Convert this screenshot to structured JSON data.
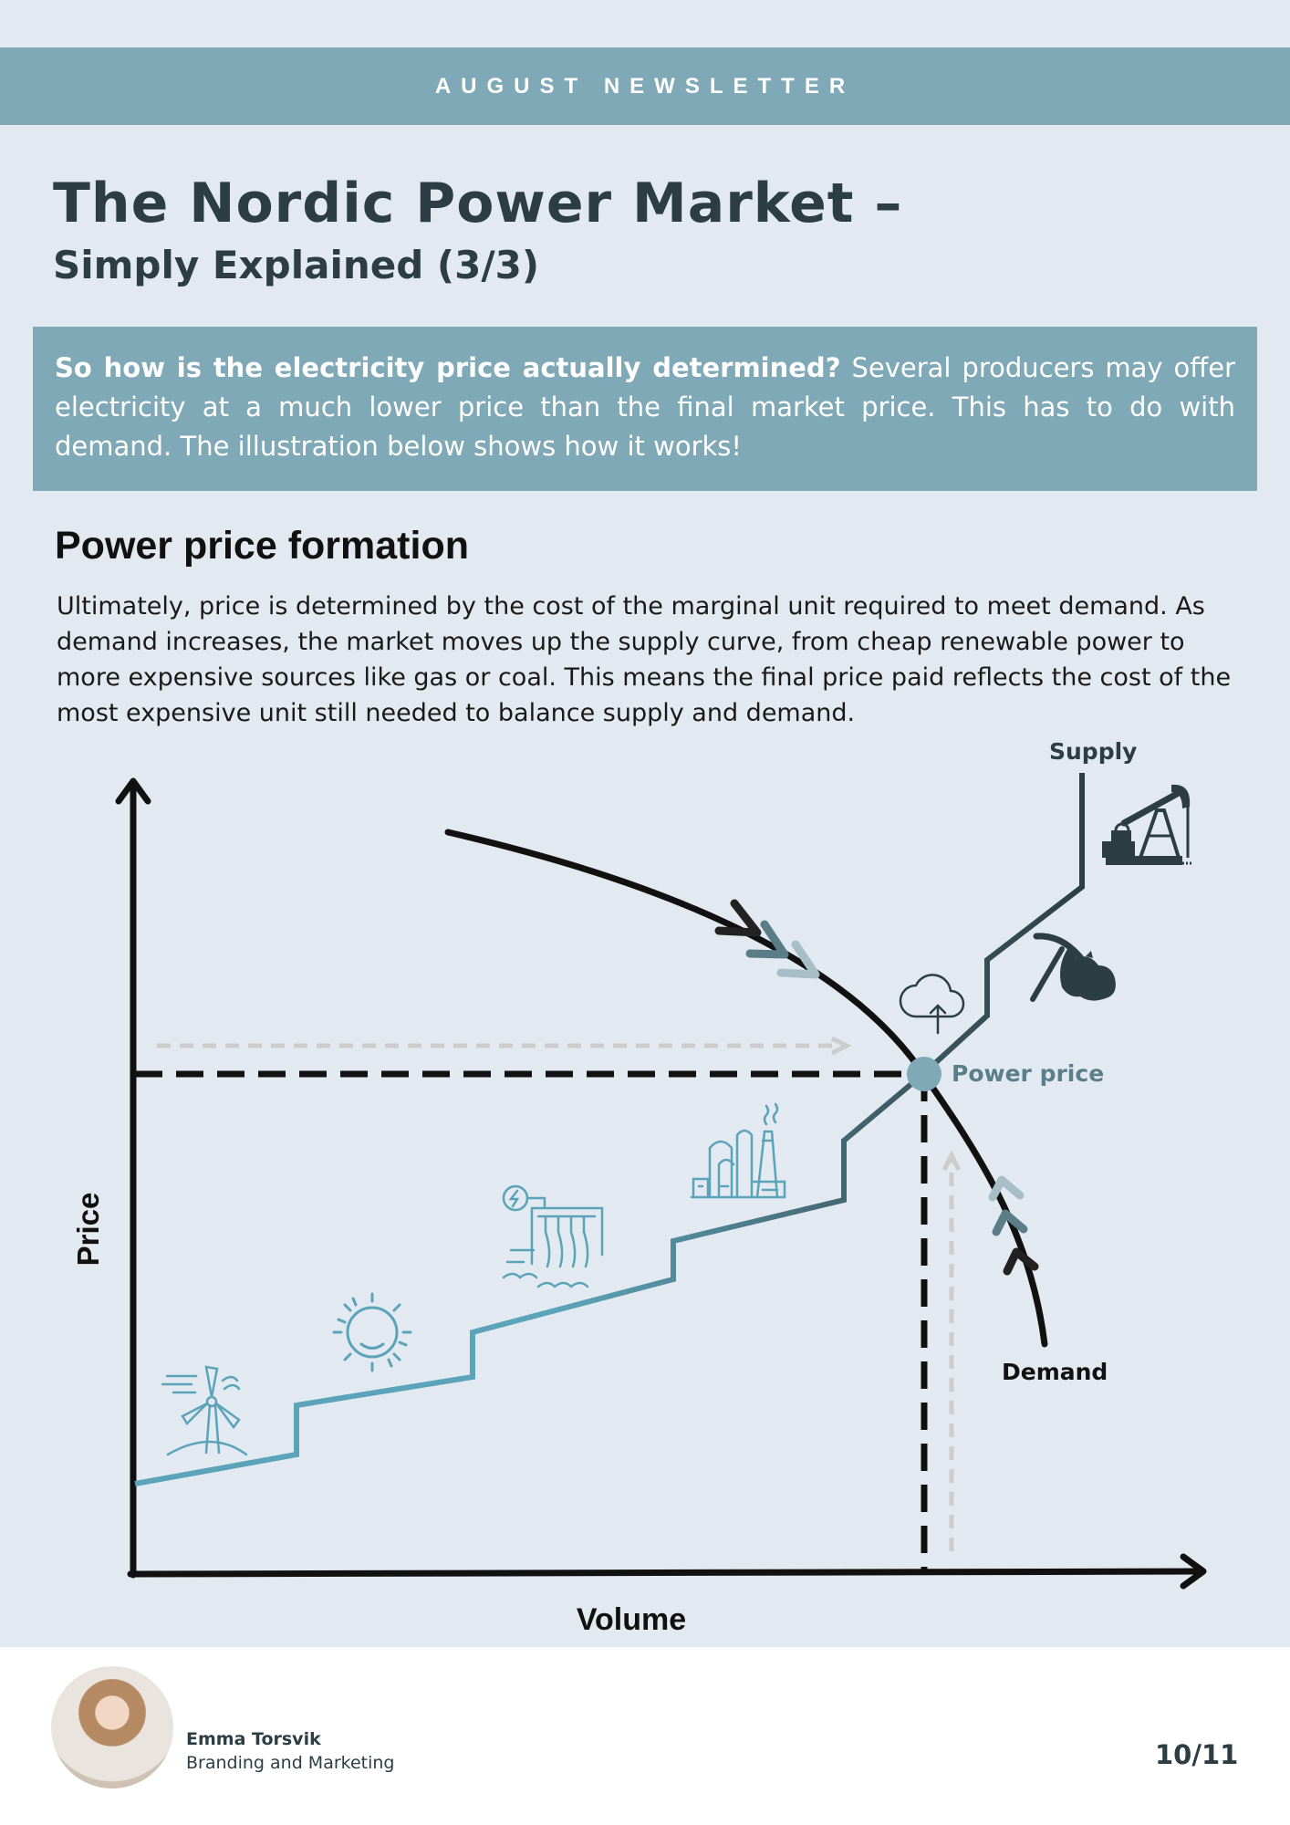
{
  "header": {
    "banner": "AUGUST NEWSLETTER"
  },
  "article": {
    "title": "The Nordic Power Market –",
    "subtitle": "Simply Explained (3/3)",
    "intro_bold": "So how is the electricity price actually determined?",
    "intro_rest": " Several producers may offer electricity at a much lower price than the final market price. This has to do with demand. The illustration below shows how it works!",
    "section_heading": "Power price formation",
    "section_body": "Ultimately, price is determined by the cost of the marginal unit required to meet demand. As demand increases, the market moves up the supply curve, from cheap renewable power to more expensive sources like gas or coal. This means the final price paid reflects the cost of the most expensive unit still needed to balance supply and demand."
  },
  "diagram": {
    "y_axis_label": "Price",
    "x_axis_label": "Volume",
    "supply_label": "Supply",
    "demand_label": "Demand",
    "equilibrium_label": "Power price",
    "supply_steps": [
      "wind",
      "solar",
      "hydro",
      "industrial",
      "cloud",
      "coal",
      "oil"
    ],
    "icons": [
      "wind-turbine-icon",
      "sun-icon",
      "hydro-dam-icon",
      "factory-icon",
      "cloud-upload-icon",
      "coal-mining-icon",
      "oil-pump-icon"
    ],
    "colors": {
      "supply_low": "#5ba3b8",
      "supply_high": "#2c3e44",
      "equilibrium_dot": "#7fa9b6",
      "guide_arrows": "#cccccc"
    }
  },
  "footer": {
    "author_name": "Emma Torsvik",
    "author_role": "Branding and Marketing",
    "page": "10/11"
  }
}
